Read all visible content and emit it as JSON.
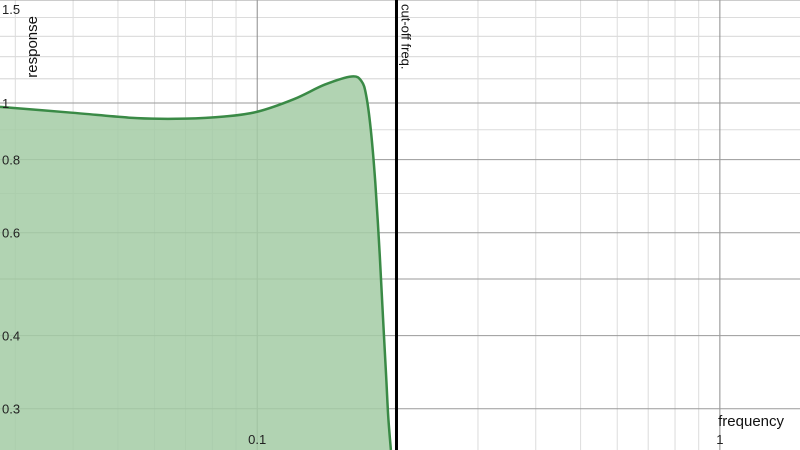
{
  "chart_data": {
    "type": "area",
    "title": "",
    "xlabel": "frequency",
    "ylabel": "response",
    "x_scale": "log",
    "y_scale": "log",
    "xlim": [
      0.0278,
      1.49
    ],
    "ylim": [
      0.255,
      1.5
    ],
    "grid": true,
    "x_ticks": [
      {
        "value": 0.1,
        "label": "0.1"
      },
      {
        "value": 1,
        "label": "1"
      }
    ],
    "y_ticks": [
      {
        "value": 1.5,
        "label": "1.5"
      },
      {
        "value": 1,
        "label": "1"
      },
      {
        "value": 0.8,
        "label": "0.8"
      },
      {
        "value": 0.6,
        "label": "0.6"
      },
      {
        "value": 0.4,
        "label": "0.4"
      },
      {
        "value": 0.3,
        "label": "0.3"
      }
    ],
    "cutoff": {
      "x": 0.2,
      "label": "cut-off freq."
    },
    "series": [
      {
        "color": "#3a8a46",
        "fill": "#a3cba5",
        "x": [
          0.0278,
          0.04,
          0.055,
          0.07,
          0.085,
          0.1,
          0.12,
          0.14,
          0.16,
          0.168,
          0.172,
          0.176,
          0.18,
          0.184,
          0.187,
          0.19,
          0.192,
          0.1945
        ],
        "y": [
          0.985,
          0.962,
          0.942,
          0.94,
          0.948,
          0.966,
          1.015,
          1.075,
          1.11,
          1.09,
          1.03,
          0.9,
          0.73,
          0.55,
          0.43,
          0.34,
          0.29,
          0.255
        ]
      }
    ]
  }
}
